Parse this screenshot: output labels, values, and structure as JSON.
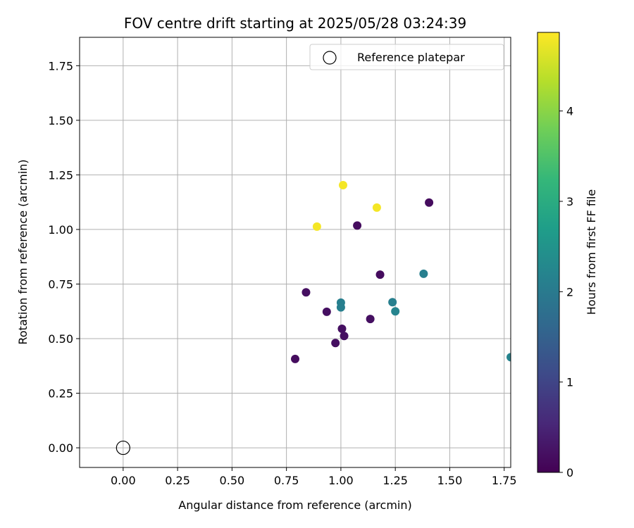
{
  "chart_data": {
    "type": "scatter",
    "title": "FOV centre drift starting at 2025/05/28 03:24:39",
    "xlabel": "Angular distance from reference (arcmin)",
    "ylabel": "Rotation from reference (arcmin)",
    "xlim": [
      -0.2,
      1.78
    ],
    "ylim": [
      -0.09,
      1.88
    ],
    "xticks": [
      0.0,
      0.25,
      0.5,
      0.75,
      1.0,
      1.25,
      1.5,
      1.75
    ],
    "xtick_labels": [
      "0.00",
      "0.25",
      "0.50",
      "0.75",
      "1.00",
      "1.25",
      "1.50",
      "1.75"
    ],
    "yticks": [
      0.0,
      0.25,
      0.5,
      0.75,
      1.0,
      1.25,
      1.5,
      1.75
    ],
    "ytick_labels": [
      "0.00",
      "0.25",
      "0.50",
      "0.75",
      "1.00",
      "1.25",
      "1.50",
      "1.75"
    ],
    "grid": true,
    "legend": {
      "position": "top-right",
      "entries": [
        "Reference platepar"
      ]
    },
    "reference_point": {
      "x": 0.0,
      "y": 0.0,
      "label": "Reference platepar"
    },
    "colorbar": {
      "label": "Hours from first FF file",
      "range": [
        0,
        4.87
      ],
      "ticks": [
        0,
        1,
        2,
        3,
        4
      ],
      "tick_labels": [
        "0",
        "1",
        "2",
        "3",
        "4"
      ],
      "colormap": [
        "#440154",
        "#482878",
        "#3e4a89",
        "#31688e",
        "#26828e",
        "#1f9e89",
        "#35b779",
        "#6ece58",
        "#b5de2b",
        "#fde725"
      ]
    },
    "points": [
      {
        "x": 1.405,
        "y": 1.123,
        "c": 0.15
      },
      {
        "x": 1.075,
        "y": 1.018,
        "c": 0.15
      },
      {
        "x": 1.18,
        "y": 0.793,
        "c": 0.15
      },
      {
        "x": 0.84,
        "y": 0.712,
        "c": 0.2
      },
      {
        "x": 0.935,
        "y": 0.623,
        "c": 0.2
      },
      {
        "x": 1.005,
        "y": 0.545,
        "c": 0.2
      },
      {
        "x": 1.135,
        "y": 0.59,
        "c": 0.2
      },
      {
        "x": 1.015,
        "y": 0.512,
        "c": 0.2
      },
      {
        "x": 0.975,
        "y": 0.48,
        "c": 0.2
      },
      {
        "x": 0.79,
        "y": 0.407,
        "c": 0.15
      },
      {
        "x": 1.0,
        "y": 0.665,
        "c": 2.1
      },
      {
        "x": 1.0,
        "y": 0.643,
        "c": 2.1
      },
      {
        "x": 1.237,
        "y": 0.667,
        "c": 2.1
      },
      {
        "x": 1.25,
        "y": 0.625,
        "c": 2.2
      },
      {
        "x": 1.38,
        "y": 0.797,
        "c": 2.1
      },
      {
        "x": 1.78,
        "y": 0.415,
        "c": 2.2
      },
      {
        "x": 1.01,
        "y": 1.203,
        "c": 4.8
      },
      {
        "x": 1.165,
        "y": 1.1,
        "c": 4.8
      },
      {
        "x": 0.89,
        "y": 1.013,
        "c": 4.8
      }
    ]
  }
}
